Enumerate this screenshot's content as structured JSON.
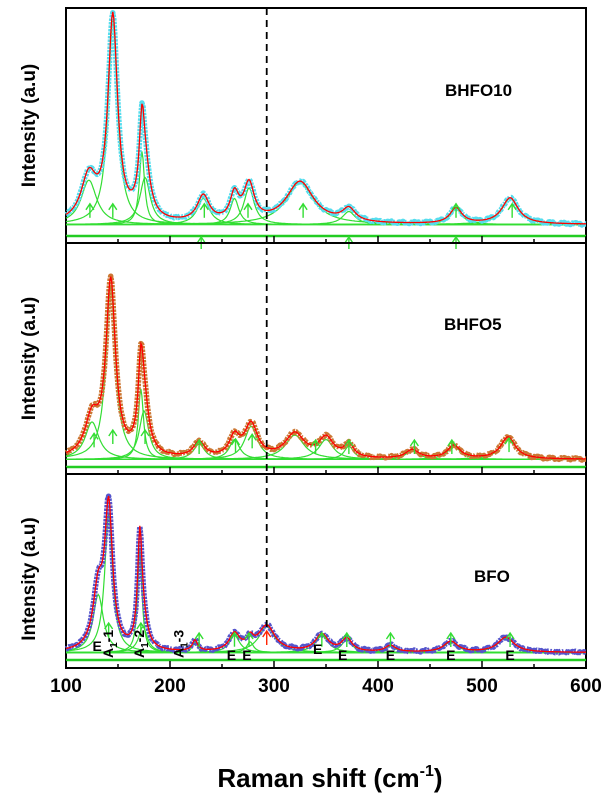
{
  "chart_data": {
    "type": "line",
    "xlabel": {
      "main": "Raman shift (cm",
      "sup": "-1",
      "close": ")"
    },
    "xlim": [
      100,
      600
    ],
    "x_ticks": [
      "100",
      "200",
      "300",
      "400",
      "500",
      "600"
    ],
    "dashed_line_x": 293,
    "colors": {
      "fit": "#ff0000",
      "components": "#33dd33",
      "baseline": "#22cc22",
      "arrow": "#33dd33",
      "arrow_red": "#ff2200"
    },
    "panels": [
      {
        "label": "BHFO10",
        "ylabel": "Intensity (a.u)",
        "data_color": "#55ddee",
        "baseline": 0.04,
        "peaks": [
          {
            "x": 122,
            "h": 0.17,
            "w": 18
          },
          {
            "x": 145,
            "h": 0.78,
            "w": 11
          },
          {
            "x": 173,
            "h": 0.28,
            "w": 6
          },
          {
            "x": 176,
            "h": 0.18,
            "w": 12
          },
          {
            "x": 232,
            "h": 0.1,
            "w": 14
          },
          {
            "x": 262,
            "h": 0.1,
            "w": 10
          },
          {
            "x": 276,
            "h": 0.14,
            "w": 12
          },
          {
            "x": 325,
            "h": 0.16,
            "w": 32
          },
          {
            "x": 372,
            "h": 0.05,
            "w": 15
          },
          {
            "x": 475,
            "h": 0.06,
            "w": 14
          },
          {
            "x": 527,
            "h": 0.1,
            "w": 19
          }
        ],
        "arrows": [
          {
            "x": 123,
            "color": "components"
          },
          {
            "x": 145,
            "color": "components"
          },
          {
            "x": 233,
            "color": "components"
          },
          {
            "x": 275,
            "color": "components"
          },
          {
            "x": 328,
            "color": "components"
          },
          {
            "x": 475,
            "color": "components"
          },
          {
            "x": 529,
            "color": "components"
          }
        ],
        "low_arrows": [
          {
            "x": 230,
            "color": "components"
          },
          {
            "x": 372,
            "color": "components"
          },
          {
            "x": 475,
            "color": "components"
          }
        ]
      },
      {
        "label": "BHFO5",
        "ylabel": "Intensity (a.u)",
        "data_color": "#cc7733",
        "baseline": 0.03,
        "peaks": [
          {
            "x": 125,
            "h": 0.17,
            "w": 16
          },
          {
            "x": 143,
            "h": 0.79,
            "w": 11
          },
          {
            "x": 172,
            "h": 0.32,
            "w": 6
          },
          {
            "x": 175,
            "h": 0.22,
            "w": 11
          },
          {
            "x": 228,
            "h": 0.07,
            "w": 13
          },
          {
            "x": 262,
            "h": 0.09,
            "w": 12
          },
          {
            "x": 278,
            "h": 0.15,
            "w": 15
          },
          {
            "x": 320,
            "h": 0.11,
            "w": 22
          },
          {
            "x": 350,
            "h": 0.09,
            "w": 17
          },
          {
            "x": 372,
            "h": 0.06,
            "w": 11
          },
          {
            "x": 433,
            "h": 0.04,
            "w": 15
          },
          {
            "x": 473,
            "h": 0.06,
            "w": 15
          },
          {
            "x": 525,
            "h": 0.1,
            "w": 17
          }
        ],
        "arrows": [
          {
            "x": 127,
            "color": "components"
          },
          {
            "x": 145,
            "color": "components"
          },
          {
            "x": 176,
            "color": "components"
          },
          {
            "x": 228,
            "color": "components"
          },
          {
            "x": 263,
            "color": "components"
          },
          {
            "x": 279,
            "color": "components"
          },
          {
            "x": 340,
            "color": "components"
          },
          {
            "x": 372,
            "color": "components"
          },
          {
            "x": 435,
            "color": "components"
          },
          {
            "x": 471,
            "color": "components"
          },
          {
            "x": 526,
            "color": "components"
          }
        ],
        "low_arrows": []
      },
      {
        "label": "BFO",
        "ylabel": "Intensity (a.u)",
        "data_color": "#5555cc",
        "baseline": 0.03,
        "peaks": [
          {
            "x": 131,
            "h": 0.27,
            "w": 12
          },
          {
            "x": 141,
            "h": 0.65,
            "w": 9
          },
          {
            "x": 171,
            "h": 0.48,
            "w": 5
          },
          {
            "x": 174,
            "h": 0.12,
            "w": 10
          },
          {
            "x": 224,
            "h": 0.05,
            "w": 6
          },
          {
            "x": 262,
            "h": 0.08,
            "w": 12
          },
          {
            "x": 277,
            "h": 0.05,
            "w": 8
          },
          {
            "x": 293,
            "h": 0.12,
            "w": 19
          },
          {
            "x": 346,
            "h": 0.08,
            "w": 15
          },
          {
            "x": 370,
            "h": 0.06,
            "w": 12
          },
          {
            "x": 412,
            "h": 0.03,
            "w": 12
          },
          {
            "x": 470,
            "h": 0.05,
            "w": 16
          },
          {
            "x": 523,
            "h": 0.07,
            "w": 19
          }
        ],
        "arrows": [
          {
            "x": 141,
            "color": "components"
          },
          {
            "x": 172,
            "color": "components"
          },
          {
            "x": 228,
            "color": "components"
          },
          {
            "x": 262,
            "color": "components"
          },
          {
            "x": 276,
            "color": "components"
          },
          {
            "x": 293,
            "color": "arrow_red"
          },
          {
            "x": 346,
            "color": "components"
          },
          {
            "x": 370,
            "color": "components"
          },
          {
            "x": 412,
            "color": "components"
          },
          {
            "x": 470,
            "color": "components"
          },
          {
            "x": 527,
            "color": "components"
          }
        ],
        "low_arrows": [],
        "mode_labels": [
          {
            "x": 130,
            "text": "E",
            "sub": "",
            "suffix": "",
            "rot": 0,
            "level": "low"
          },
          {
            "x": 145,
            "text": "A",
            "sub": "1",
            "suffix": "-1",
            "rot": -90,
            "level": "high"
          },
          {
            "x": 175,
            "text": "A",
            "sub": "1",
            "suffix": "-2",
            "rot": -90,
            "level": "high"
          },
          {
            "x": 213,
            "text": "A",
            "sub": "1",
            "suffix": "-3",
            "rot": -90,
            "level": "high"
          },
          {
            "x": 259,
            "text": "E",
            "sub": "",
            "suffix": "",
            "rot": 0,
            "level": "mid"
          },
          {
            "x": 274,
            "text": "E",
            "sub": "",
            "suffix": "",
            "rot": 0,
            "level": "mid"
          },
          {
            "x": 342,
            "text": "E",
            "sub": "",
            "suffix": "",
            "rot": 0,
            "level": "low2"
          },
          {
            "x": 366,
            "text": "E",
            "sub": "",
            "suffix": "",
            "rot": 0,
            "level": "mid"
          },
          {
            "x": 412,
            "text": "E",
            "sub": "",
            "suffix": "",
            "rot": 0,
            "level": "mid"
          },
          {
            "x": 470,
            "text": "E",
            "sub": "",
            "suffix": "",
            "rot": 0,
            "level": "mid"
          },
          {
            "x": 527,
            "text": "E",
            "sub": "",
            "suffix": "",
            "rot": 0,
            "level": "mid"
          }
        ]
      }
    ]
  }
}
